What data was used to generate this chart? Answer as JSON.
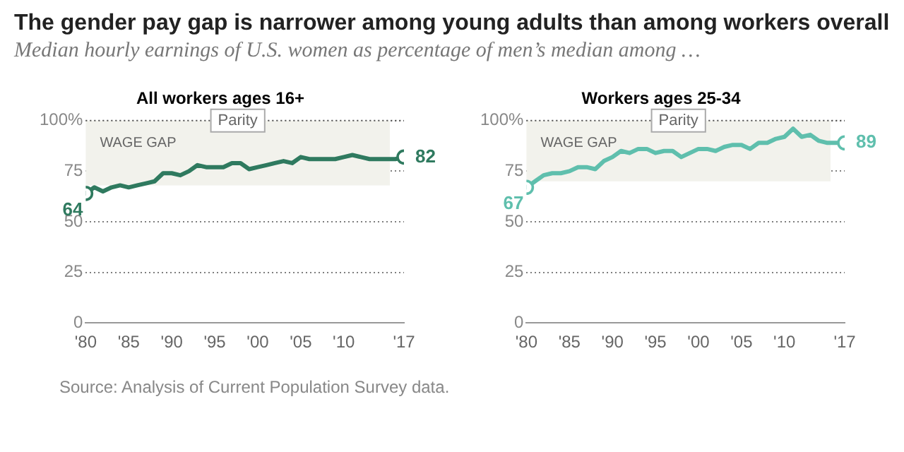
{
  "chart_data": [
    {
      "type": "other",
      "title": "The gender pay gap is narrower among young adults than among workers overall",
      "subtitle": "Median hourly earnings of U.S. women as percentage of men’s median among …",
      "annotations": [
        "Source: Analysis of Current Population Survey data."
      ]
    },
    {
      "type": "line",
      "title": "All workers ages 16+",
      "x": [
        1980,
        1981,
        1982,
        1983,
        1984,
        1985,
        1986,
        1987,
        1988,
        1989,
        1990,
        1991,
        1992,
        1993,
        1994,
        1995,
        1996,
        1997,
        1998,
        1999,
        2000,
        2001,
        2002,
        2003,
        2004,
        2005,
        2006,
        2007,
        2008,
        2009,
        2010,
        2011,
        2012,
        2013,
        2014,
        2015,
        2016,
        2017
      ],
      "series": [
        {
          "color": "#2f7a5f",
          "values": [
            64,
            67,
            65,
            67,
            68,
            67,
            68,
            69,
            70,
            74,
            74,
            73,
            75,
            78,
            77,
            77,
            77,
            79,
            79,
            76,
            77,
            78,
            79,
            80,
            79,
            82,
            81,
            81,
            81,
            81,
            82,
            83,
            82,
            81,
            81,
            81,
            81,
            82
          ],
          "value_labels": [
            "64",
            null,
            null,
            null,
            null,
            null,
            null,
            null,
            null,
            null,
            null,
            null,
            null,
            null,
            null,
            null,
            null,
            null,
            null,
            null,
            null,
            null,
            null,
            null,
            null,
            null,
            null,
            null,
            null,
            null,
            null,
            null,
            null,
            null,
            null,
            null,
            null,
            "82"
          ]
        }
      ],
      "xlim": [
        1980,
        2017
      ],
      "xticks": [
        {
          "value": 1980,
          "label": "'80"
        },
        {
          "value": 1985,
          "label": "'85"
        },
        {
          "value": 1990,
          "label": "'90"
        },
        {
          "value": 1995,
          "label": "'95"
        },
        {
          "value": 2000,
          "label": "'00"
        },
        {
          "value": 2005,
          "label": "'05"
        },
        {
          "value": 2010,
          "label": "'10"
        },
        {
          "value": 2017,
          "label": "'17"
        }
      ],
      "ylim": [
        0,
        100
      ],
      "yticks": [
        0,
        25,
        50,
        75,
        {
          "value": 100,
          "label": "100%"
        }
      ],
      "grid": "y",
      "marker": "none",
      "line_style": "solid",
      "ref_lines": [
        {
          "axis": "y",
          "value": 100,
          "label": "Parity"
        }
      ],
      "bands": [
        {
          "axis": "y",
          "from": 68,
          "to": 100,
          "label": "WAGE GAP",
          "color": "#f2f2ec"
        }
      ]
    },
    {
      "type": "line",
      "title": "Workers ages 25-34",
      "x": [
        1980,
        1981,
        1982,
        1983,
        1984,
        1985,
        1986,
        1987,
        1988,
        1989,
        1990,
        1991,
        1992,
        1993,
        1994,
        1995,
        1996,
        1997,
        1998,
        1999,
        2000,
        2001,
        2002,
        2003,
        2004,
        2005,
        2006,
        2007,
        2008,
        2009,
        2010,
        2011,
        2012,
        2013,
        2014,
        2015,
        2016,
        2017
      ],
      "series": [
        {
          "color": "#5fbfad",
          "values": [
            67,
            70,
            73,
            74,
            74,
            75,
            77,
            77,
            76,
            80,
            82,
            85,
            84,
            86,
            86,
            84,
            85,
            85,
            82,
            84,
            86,
            86,
            85,
            87,
            88,
            88,
            86,
            89,
            89,
            91,
            92,
            96,
            92,
            93,
            90,
            89,
            89,
            89
          ],
          "value_labels": [
            "67",
            null,
            null,
            null,
            null,
            null,
            null,
            null,
            null,
            null,
            null,
            null,
            null,
            null,
            null,
            null,
            null,
            null,
            null,
            null,
            null,
            null,
            null,
            null,
            null,
            null,
            null,
            null,
            null,
            null,
            null,
            null,
            null,
            null,
            null,
            null,
            null,
            "89"
          ]
        }
      ],
      "xlim": [
        1980,
        2017
      ],
      "xticks": [
        {
          "value": 1980,
          "label": "'80"
        },
        {
          "value": 1985,
          "label": "'85"
        },
        {
          "value": 1990,
          "label": "'90"
        },
        {
          "value": 1995,
          "label": "'95"
        },
        {
          "value": 2000,
          "label": "'00"
        },
        {
          "value": 2005,
          "label": "'05"
        },
        {
          "value": 2010,
          "label": "'10"
        },
        {
          "value": 2017,
          "label": "'17"
        }
      ],
      "ylim": [
        0,
        100
      ],
      "yticks": [
        0,
        25,
        50,
        75,
        {
          "value": 100,
          "label": "100%"
        }
      ],
      "grid": "y",
      "marker": "none",
      "line_style": "solid",
      "ref_lines": [
        {
          "axis": "y",
          "value": 100,
          "label": "Parity"
        }
      ],
      "bands": [
        {
          "axis": "y",
          "from": 70,
          "to": 100,
          "label": "WAGE GAP",
          "color": "#f2f2ec"
        }
      ]
    }
  ]
}
